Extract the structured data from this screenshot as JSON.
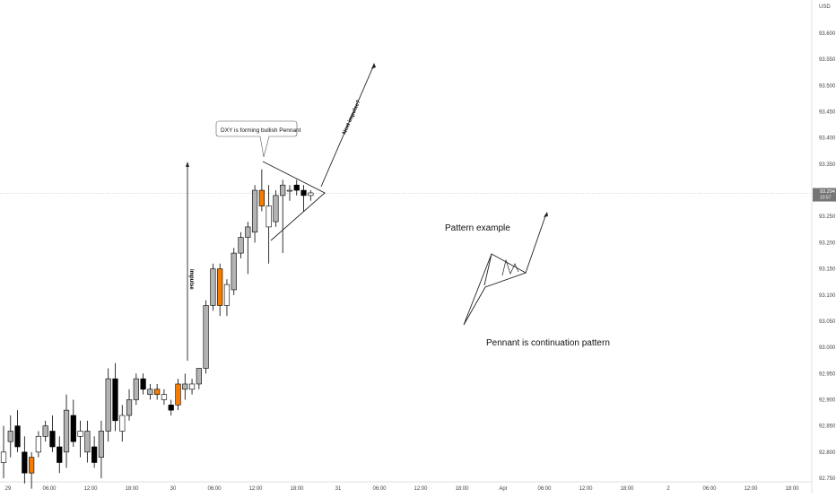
{
  "chart_data": {
    "type": "candlestick",
    "currency": "USD",
    "ylim": [
      92.75,
      93.65
    ],
    "y_ticks": [
      93.6,
      93.55,
      93.5,
      93.45,
      93.4,
      93.35,
      93.3,
      93.25,
      93.2,
      93.15,
      93.1,
      93.05,
      93.0,
      92.95,
      92.9,
      92.85,
      92.8,
      92.75
    ],
    "y_tick_labels": [
      "93.600",
      "93.550",
      "93.500",
      "93.450",
      "93.400",
      "93.350",
      "93.300",
      "93.250",
      "93.200",
      "93.150",
      "93.100",
      "93.050",
      "93.000",
      "92.950",
      "92.900",
      "92.850",
      "92.800",
      "92.750"
    ],
    "x_tick_labels": [
      "29",
      "06:00",
      "12:00",
      "18:00",
      "30",
      "06:00",
      "12:00",
      "18:00",
      "31",
      "06:00",
      "12:00",
      "18:00",
      "Apr",
      "06:00",
      "12:00",
      "18:00",
      "2",
      "06:00",
      "12:00",
      "18:00"
    ],
    "last_price": {
      "value": 93.294,
      "label": "93.294",
      "countdown": "10:57"
    },
    "candles": [
      {
        "o": 92.78,
        "h": 92.85,
        "l": 92.75,
        "c": 92.8,
        "color": "white"
      },
      {
        "o": 92.82,
        "h": 92.87,
        "l": 92.79,
        "c": 92.84,
        "color": "grey"
      },
      {
        "o": 92.85,
        "h": 92.88,
        "l": 92.8,
        "c": 92.81,
        "color": "black"
      },
      {
        "o": 92.8,
        "h": 92.83,
        "l": 92.74,
        "c": 92.76,
        "color": "black"
      },
      {
        "o": 92.76,
        "h": 92.8,
        "l": 92.73,
        "c": 92.79,
        "color": "orange"
      },
      {
        "o": 92.8,
        "h": 92.84,
        "l": 92.79,
        "c": 92.83,
        "color": "white"
      },
      {
        "o": 92.83,
        "h": 92.86,
        "l": 92.82,
        "c": 92.85,
        "color": "grey"
      },
      {
        "o": 92.84,
        "h": 92.87,
        "l": 92.8,
        "c": 92.81,
        "color": "black"
      },
      {
        "o": 92.81,
        "h": 92.83,
        "l": 92.76,
        "c": 92.78,
        "color": "black"
      },
      {
        "o": 92.8,
        "h": 92.91,
        "l": 92.77,
        "c": 92.88,
        "color": "grey"
      },
      {
        "o": 92.87,
        "h": 92.9,
        "l": 92.81,
        "c": 92.82,
        "color": "black"
      },
      {
        "o": 92.83,
        "h": 92.86,
        "l": 92.79,
        "c": 92.84,
        "color": "white"
      },
      {
        "o": 92.84,
        "h": 92.86,
        "l": 92.78,
        "c": 92.8,
        "color": "grey"
      },
      {
        "o": 92.81,
        "h": 92.83,
        "l": 92.77,
        "c": 92.78,
        "color": "black"
      },
      {
        "o": 92.79,
        "h": 92.86,
        "l": 92.75,
        "c": 92.84,
        "color": "grey"
      },
      {
        "o": 92.84,
        "h": 92.96,
        "l": 92.82,
        "c": 92.94,
        "color": "grey"
      },
      {
        "o": 92.94,
        "h": 92.97,
        "l": 92.84,
        "c": 92.86,
        "color": "black"
      },
      {
        "o": 92.84,
        "h": 92.89,
        "l": 92.82,
        "c": 92.87,
        "color": "white"
      },
      {
        "o": 92.87,
        "h": 92.92,
        "l": 92.86,
        "c": 92.9,
        "color": "grey"
      },
      {
        "o": 92.9,
        "h": 92.95,
        "l": 92.89,
        "c": 92.94,
        "color": "grey"
      },
      {
        "o": 92.94,
        "h": 92.95,
        "l": 92.91,
        "c": 92.92,
        "color": "black"
      },
      {
        "o": 92.92,
        "h": 92.93,
        "l": 92.9,
        "c": 92.91,
        "color": "grey"
      },
      {
        "o": 92.92,
        "h": 92.93,
        "l": 92.9,
        "c": 92.91,
        "color": "orange"
      },
      {
        "o": 92.91,
        "h": 92.92,
        "l": 92.89,
        "c": 92.9,
        "color": "white"
      },
      {
        "o": 92.89,
        "h": 92.9,
        "l": 92.87,
        "c": 92.88,
        "color": "black"
      },
      {
        "o": 92.89,
        "h": 92.94,
        "l": 92.88,
        "c": 92.93,
        "color": "orange"
      },
      {
        "o": 92.92,
        "h": 92.95,
        "l": 92.9,
        "c": 92.93,
        "color": "grey"
      },
      {
        "o": 92.92,
        "h": 92.94,
        "l": 92.91,
        "c": 92.93,
        "color": "white"
      },
      {
        "o": 92.93,
        "h": 92.96,
        "l": 92.92,
        "c": 92.96,
        "color": "grey"
      },
      {
        "o": 92.96,
        "h": 93.09,
        "l": 92.95,
        "c": 93.08,
        "color": "grey"
      },
      {
        "o": 93.08,
        "h": 93.16,
        "l": 93.07,
        "c": 93.15,
        "color": "grey"
      },
      {
        "o": 93.15,
        "h": 93.16,
        "l": 93.06,
        "c": 93.08,
        "color": "orange"
      },
      {
        "o": 93.08,
        "h": 93.13,
        "l": 93.06,
        "c": 93.12,
        "color": "white"
      },
      {
        "o": 93.11,
        "h": 93.19,
        "l": 93.1,
        "c": 93.18,
        "color": "grey"
      },
      {
        "o": 93.18,
        "h": 93.22,
        "l": 93.17,
        "c": 93.21,
        "color": "grey"
      },
      {
        "o": 93.21,
        "h": 93.24,
        "l": 93.14,
        "c": 93.23,
        "color": "grey"
      },
      {
        "o": 93.22,
        "h": 93.31,
        "l": 93.2,
        "c": 93.3,
        "color": "grey"
      },
      {
        "o": 93.3,
        "h": 93.34,
        "l": 93.26,
        "c": 93.27,
        "color": "orange"
      },
      {
        "o": 93.27,
        "h": 93.31,
        "l": 93.16,
        "c": 93.23,
        "color": "white"
      },
      {
        "o": 93.24,
        "h": 93.3,
        "l": 93.23,
        "c": 93.29,
        "color": "grey"
      },
      {
        "o": 93.29,
        "h": 93.32,
        "l": 93.18,
        "c": 93.31,
        "color": "grey"
      },
      {
        "o": 93.3,
        "h": 93.31,
        "l": 93.28,
        "c": 93.3,
        "color": "white"
      },
      {
        "o": 93.31,
        "h": 93.32,
        "l": 93.29,
        "c": 93.3,
        "color": "black"
      },
      {
        "o": 93.3,
        "h": 93.31,
        "l": 93.26,
        "c": 93.29,
        "color": "black"
      },
      {
        "o": 93.29,
        "h": 93.3,
        "l": 93.28,
        "c": 93.295,
        "color": "white"
      }
    ],
    "annotations": {
      "bubble": "DXY is forming bullish Pennant",
      "next_impulse": "Next impulse?",
      "impulse": "impulse",
      "pattern_example": "Pattern example",
      "continuation": "Pennant is continuation pattern"
    },
    "grid": false
  }
}
